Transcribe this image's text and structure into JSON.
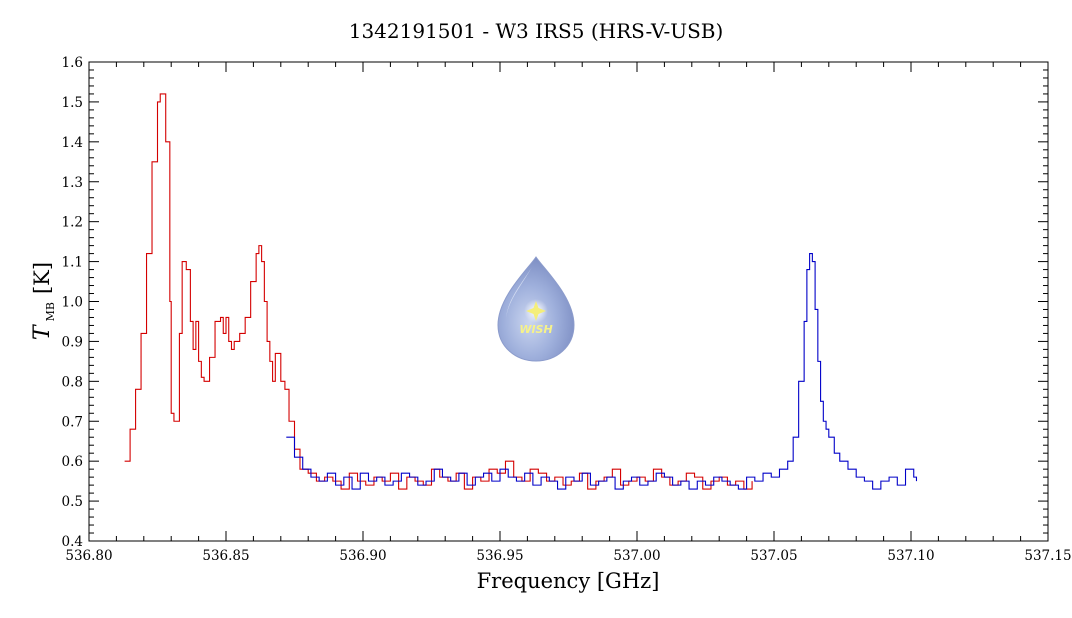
{
  "chart_data": {
    "type": "line",
    "title": "1342191501 - W3 IRS5 (HRS-V-USB)",
    "xlabel": "Frequency [GHz]",
    "ylabel": {
      "symbol": "T",
      "subscript": "MB",
      "unit": "[K]"
    },
    "xlim": [
      536.8,
      537.15
    ],
    "ylim": [
      0.4,
      1.6
    ],
    "x_ticks": [
      536.8,
      536.85,
      536.9,
      536.95,
      537.0,
      537.05,
      537.1,
      537.15
    ],
    "x_tick_labels": [
      "536.80",
      "536.85",
      "536.90",
      "536.95",
      "537.00",
      "537.05",
      "537.10",
      "537.15"
    ],
    "y_ticks": [
      0.4,
      0.5,
      0.6,
      0.7,
      0.8,
      0.9,
      1.0,
      1.1,
      1.2,
      1.3,
      1.4,
      1.5,
      1.6
    ],
    "y_tick_labels": [
      "0.4",
      "0.5",
      "0.6",
      "0.7",
      "0.8",
      "0.9",
      "1.0",
      "1.1",
      "1.2",
      "1.3",
      "1.4",
      "1.5",
      "1.6"
    ],
    "grid": false,
    "legend": null,
    "logo": {
      "text": "WISH"
    },
    "series": [
      {
        "name": "red spectrum",
        "color": "#d40000",
        "style": "steps",
        "x": [
          536.813,
          536.815,
          536.817,
          536.819,
          536.821,
          536.823,
          536.825,
          536.826,
          536.828,
          536.8295,
          536.83,
          536.831,
          536.833,
          536.834,
          536.8355,
          536.837,
          536.838,
          536.839,
          536.84,
          536.841,
          536.842,
          536.844,
          536.846,
          536.848,
          536.849,
          536.85,
          536.851,
          536.852,
          536.853,
          536.855,
          536.857,
          536.859,
          536.861,
          536.862,
          536.863,
          536.864,
          536.865,
          536.866,
          536.867,
          536.868,
          536.87,
          536.8715,
          536.873,
          536.875,
          536.877,
          536.88,
          536.883,
          536.886,
          536.889,
          536.892,
          536.895,
          536.898,
          536.901,
          536.904,
          536.907,
          536.91,
          536.913,
          536.916,
          536.919,
          536.922,
          536.925,
          536.928,
          536.931,
          536.934,
          536.937,
          536.94,
          536.943,
          536.946,
          536.949,
          536.952,
          536.955,
          536.958,
          536.961,
          536.964,
          536.967,
          536.97,
          536.973,
          536.976,
          536.979,
          536.982,
          536.985,
          536.988,
          536.991,
          536.994,
          536.997,
          537.0,
          537.003,
          537.006,
          537.009,
          537.012,
          537.015,
          537.018,
          537.021,
          537.024,
          537.027,
          537.03,
          537.033,
          537.036,
          537.039,
          537.042
        ],
        "y": [
          0.6,
          0.68,
          0.78,
          0.92,
          1.12,
          1.35,
          1.5,
          1.52,
          1.4,
          1.0,
          0.72,
          0.7,
          0.92,
          1.1,
          1.08,
          0.95,
          0.88,
          0.95,
          0.85,
          0.81,
          0.8,
          0.86,
          0.95,
          0.96,
          0.92,
          0.96,
          0.9,
          0.88,
          0.9,
          0.92,
          0.96,
          1.05,
          1.12,
          1.14,
          1.1,
          1.0,
          0.9,
          0.85,
          0.8,
          0.87,
          0.8,
          0.78,
          0.7,
          0.63,
          0.58,
          0.57,
          0.55,
          0.56,
          0.55,
          0.53,
          0.57,
          0.55,
          0.54,
          0.56,
          0.55,
          0.57,
          0.53,
          0.56,
          0.55,
          0.54,
          0.58,
          0.56,
          0.55,
          0.57,
          0.53,
          0.56,
          0.55,
          0.58,
          0.57,
          0.6,
          0.56,
          0.55,
          0.58,
          0.57,
          0.55,
          0.56,
          0.54,
          0.55,
          0.57,
          0.53,
          0.55,
          0.56,
          0.58,
          0.54,
          0.55,
          0.56,
          0.55,
          0.58,
          0.56,
          0.54,
          0.55,
          0.57,
          0.56,
          0.53,
          0.55,
          0.56,
          0.54,
          0.55,
          0.53,
          0.55
        ]
      },
      {
        "name": "blue spectrum",
        "color": "#0000c8",
        "style": "steps",
        "x": [
          536.872,
          536.875,
          536.878,
          536.881,
          536.884,
          536.887,
          536.89,
          536.893,
          536.896,
          536.899,
          536.902,
          536.905,
          536.908,
          536.911,
          536.914,
          536.917,
          536.92,
          536.923,
          536.926,
          536.929,
          536.932,
          536.935,
          536.938,
          536.941,
          536.944,
          536.947,
          536.95,
          536.953,
          536.956,
          536.959,
          536.962,
          536.965,
          536.968,
          536.971,
          536.974,
          536.977,
          536.98,
          536.983,
          536.986,
          536.989,
          536.992,
          536.995,
          536.998,
          537.001,
          537.004,
          537.007,
          537.01,
          537.013,
          537.016,
          537.019,
          537.022,
          537.025,
          537.028,
          537.031,
          537.034,
          537.037,
          537.04,
          537.043,
          537.046,
          537.049,
          537.052,
          537.055,
          537.057,
          537.059,
          537.061,
          537.062,
          537.063,
          537.064,
          537.065,
          537.066,
          537.067,
          537.068,
          537.069,
          537.07,
          537.072,
          537.074,
          537.077,
          537.08,
          537.083,
          537.086,
          537.089,
          537.092,
          537.095,
          537.098,
          537.101,
          537.102
        ],
        "y": [
          0.66,
          0.61,
          0.58,
          0.56,
          0.55,
          0.57,
          0.54,
          0.56,
          0.53,
          0.57,
          0.55,
          0.56,
          0.54,
          0.55,
          0.57,
          0.56,
          0.54,
          0.55,
          0.58,
          0.56,
          0.55,
          0.57,
          0.54,
          0.56,
          0.57,
          0.55,
          0.58,
          0.56,
          0.55,
          0.57,
          0.54,
          0.56,
          0.55,
          0.53,
          0.56,
          0.55,
          0.57,
          0.54,
          0.55,
          0.56,
          0.53,
          0.55,
          0.56,
          0.54,
          0.55,
          0.57,
          0.56,
          0.54,
          0.55,
          0.53,
          0.55,
          0.54,
          0.56,
          0.55,
          0.54,
          0.53,
          0.56,
          0.55,
          0.57,
          0.56,
          0.58,
          0.6,
          0.66,
          0.8,
          0.95,
          1.08,
          1.12,
          1.1,
          0.98,
          0.85,
          0.75,
          0.7,
          0.68,
          0.66,
          0.62,
          0.6,
          0.58,
          0.56,
          0.55,
          0.53,
          0.55,
          0.56,
          0.54,
          0.58,
          0.56,
          0.55
        ]
      }
    ]
  }
}
